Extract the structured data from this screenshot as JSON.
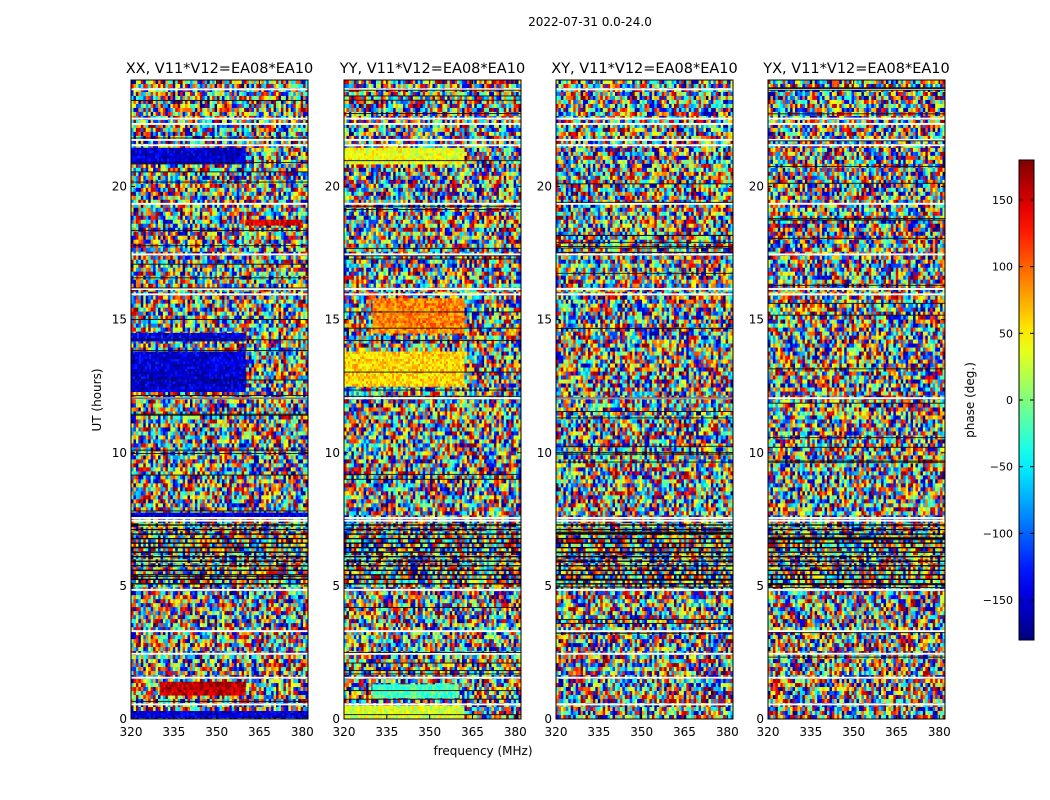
{
  "figure": {
    "suptitle": "2022-07-31 0.0-24.0"
  },
  "chart_data": {
    "type": "heatmap",
    "colormap": "jet",
    "shared_xlabel": "frequency (MHz)",
    "shared_ylabel": "UT (hours)",
    "xlim": [
      320,
      382
    ],
    "ylim": [
      0,
      24
    ],
    "x_ticks": [
      320,
      335,
      350,
      365,
      380
    ],
    "y_ticks": [
      0,
      5,
      10,
      15,
      20
    ],
    "flagged_gap_starts_ut": [
      0.55,
      1.55,
      2.45,
      3.3,
      4.85,
      7.45,
      7.55,
      12.05,
      15.95,
      16.15,
      17.45,
      19.35,
      21.55,
      21.75,
      22.35,
      22.55,
      23.65
    ],
    "colorbar": {
      "label": "phase (deg.)",
      "vmin": -180,
      "vmax": 180,
      "ticks": [
        150,
        100,
        50,
        0,
        -50,
        -100,
        -150
      ],
      "ticklabels": [
        "150",
        "100",
        "50",
        "0",
        "−50",
        "−100",
        "−150"
      ]
    },
    "panels": [
      {
        "title": "XX, V11*V12=EA08*EA10",
        "coherent_bands": [
          {
            "ut_start": 20.85,
            "ut_end": 21.45,
            "freq_start": 320,
            "freq_end": 360,
            "phase_deg": -150
          },
          {
            "ut_start": 12.3,
            "ut_end": 13.8,
            "freq_start": 320,
            "freq_end": 360,
            "phase_deg": -150
          },
          {
            "ut_start": 14.2,
            "ut_end": 14.5,
            "freq_start": 320,
            "freq_end": 360,
            "phase_deg": -140
          },
          {
            "ut_start": 18.55,
            "ut_end": 18.75,
            "freq_start": 360,
            "freq_end": 380,
            "phase_deg": 150
          },
          {
            "ut_start": 0.9,
            "ut_end": 1.4,
            "freq_start": 330,
            "freq_end": 360,
            "phase_deg": 160
          },
          {
            "ut_start": 7.6,
            "ut_end": 7.75,
            "freq_start": 320,
            "freq_end": 382,
            "phase_deg": -150
          },
          {
            "ut_start": 0.05,
            "ut_end": 0.3,
            "freq_start": 320,
            "freq_end": 382,
            "phase_deg": -150
          }
        ]
      },
      {
        "title": "YY, V11*V12=EA08*EA10",
        "coherent_bands": [
          {
            "ut_start": 20.85,
            "ut_end": 21.45,
            "freq_start": 320,
            "freq_end": 362,
            "phase_deg": 40
          },
          {
            "ut_start": 12.5,
            "ut_end": 13.8,
            "freq_start": 320,
            "freq_end": 362,
            "phase_deg": 60
          },
          {
            "ut_start": 14.5,
            "ut_end": 15.8,
            "freq_start": 330,
            "freq_end": 362,
            "phase_deg": 90
          },
          {
            "ut_start": 0.0,
            "ut_end": 0.5,
            "freq_start": 320,
            "freq_end": 362,
            "phase_deg": 30
          },
          {
            "ut_start": 0.8,
            "ut_end": 1.3,
            "freq_start": 330,
            "freq_end": 360,
            "phase_deg": -20
          }
        ]
      },
      {
        "title": "XY, V11*V12=EA08*EA10",
        "coherent_bands": []
      },
      {
        "title": "YX, V11*V12=EA08*EA10",
        "coherent_bands": []
      }
    ]
  }
}
